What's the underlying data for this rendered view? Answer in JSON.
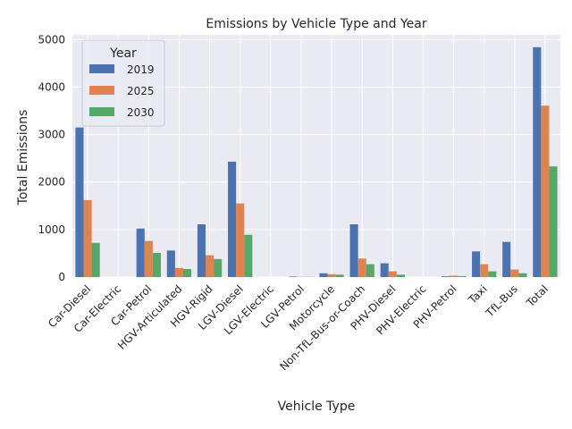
{
  "chart_data": {
    "type": "bar",
    "title": "Emissions by Vehicle Type and Year",
    "xlabel": "Vehicle Type",
    "ylabel": "Total Emissions",
    "ylim": [
      0,
      5100
    ],
    "yticks": [
      0,
      1000,
      2000,
      3000,
      4000,
      5000
    ],
    "grid": true,
    "legend": {
      "title": "Year",
      "placement": "top-left"
    },
    "categories": [
      "Car-Diesel",
      "Car-Electric",
      "Car-Petrol",
      "HGV-Articulated",
      "HGV-Rigid",
      "LGV-Diesel",
      "LGV-Electric",
      "LGV-Petrol",
      "Motorcycle",
      "Non-TfL-Bus-or-Coach",
      "PHV-Diesel",
      "PHV-Electric",
      "PHV-Petrol",
      "Taxi",
      "TfL-Bus",
      "Total"
    ],
    "series": [
      {
        "name": "2019",
        "color": "#4c72b0",
        "values": [
          3150,
          0,
          1020,
          560,
          1110,
          2430,
          0,
          10,
          80,
          1110,
          290,
          0,
          15,
          540,
          740,
          4840
        ]
      },
      {
        "name": "2025",
        "color": "#dd8452",
        "values": [
          1620,
          0,
          760,
          190,
          460,
          1550,
          0,
          5,
          60,
          390,
          120,
          0,
          30,
          270,
          160,
          3610
        ]
      },
      {
        "name": "2030",
        "color": "#55a868",
        "values": [
          720,
          0,
          510,
          170,
          380,
          890,
          0,
          5,
          50,
          270,
          50,
          0,
          20,
          120,
          80,
          2330
        ]
      }
    ]
  }
}
